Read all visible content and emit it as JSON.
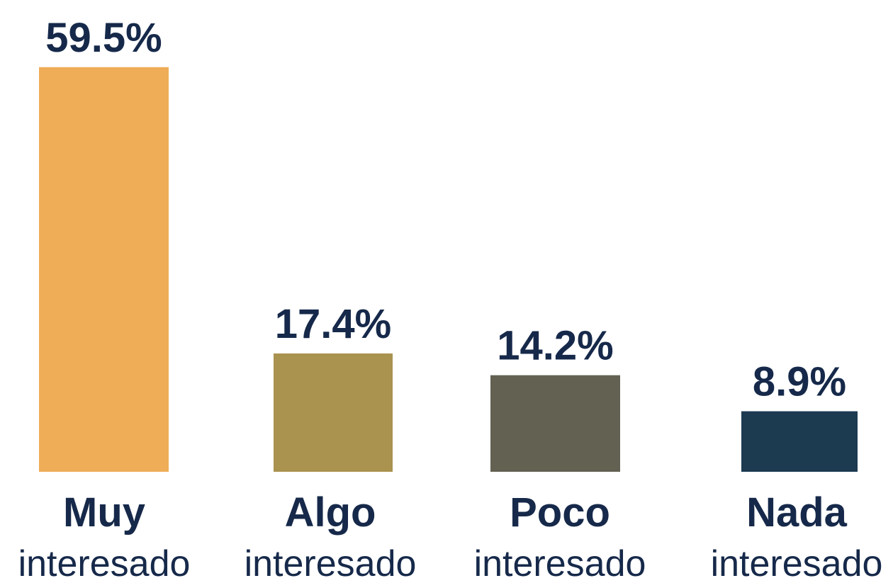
{
  "chart_data": {
    "type": "bar",
    "categories": [
      "Muy",
      "Algo",
      "Poco",
      "Nada"
    ],
    "category_sublabels": [
      "interesado",
      "interesado",
      "interesado",
      "interesado"
    ],
    "values": [
      59.5,
      17.4,
      14.2,
      8.9
    ],
    "value_labels": [
      "59.5%",
      "17.4%",
      "14.2%",
      "8.9%"
    ],
    "colors": [
      "#efad58",
      "#aa924f",
      "#636152",
      "#1c3a50"
    ]
  }
}
